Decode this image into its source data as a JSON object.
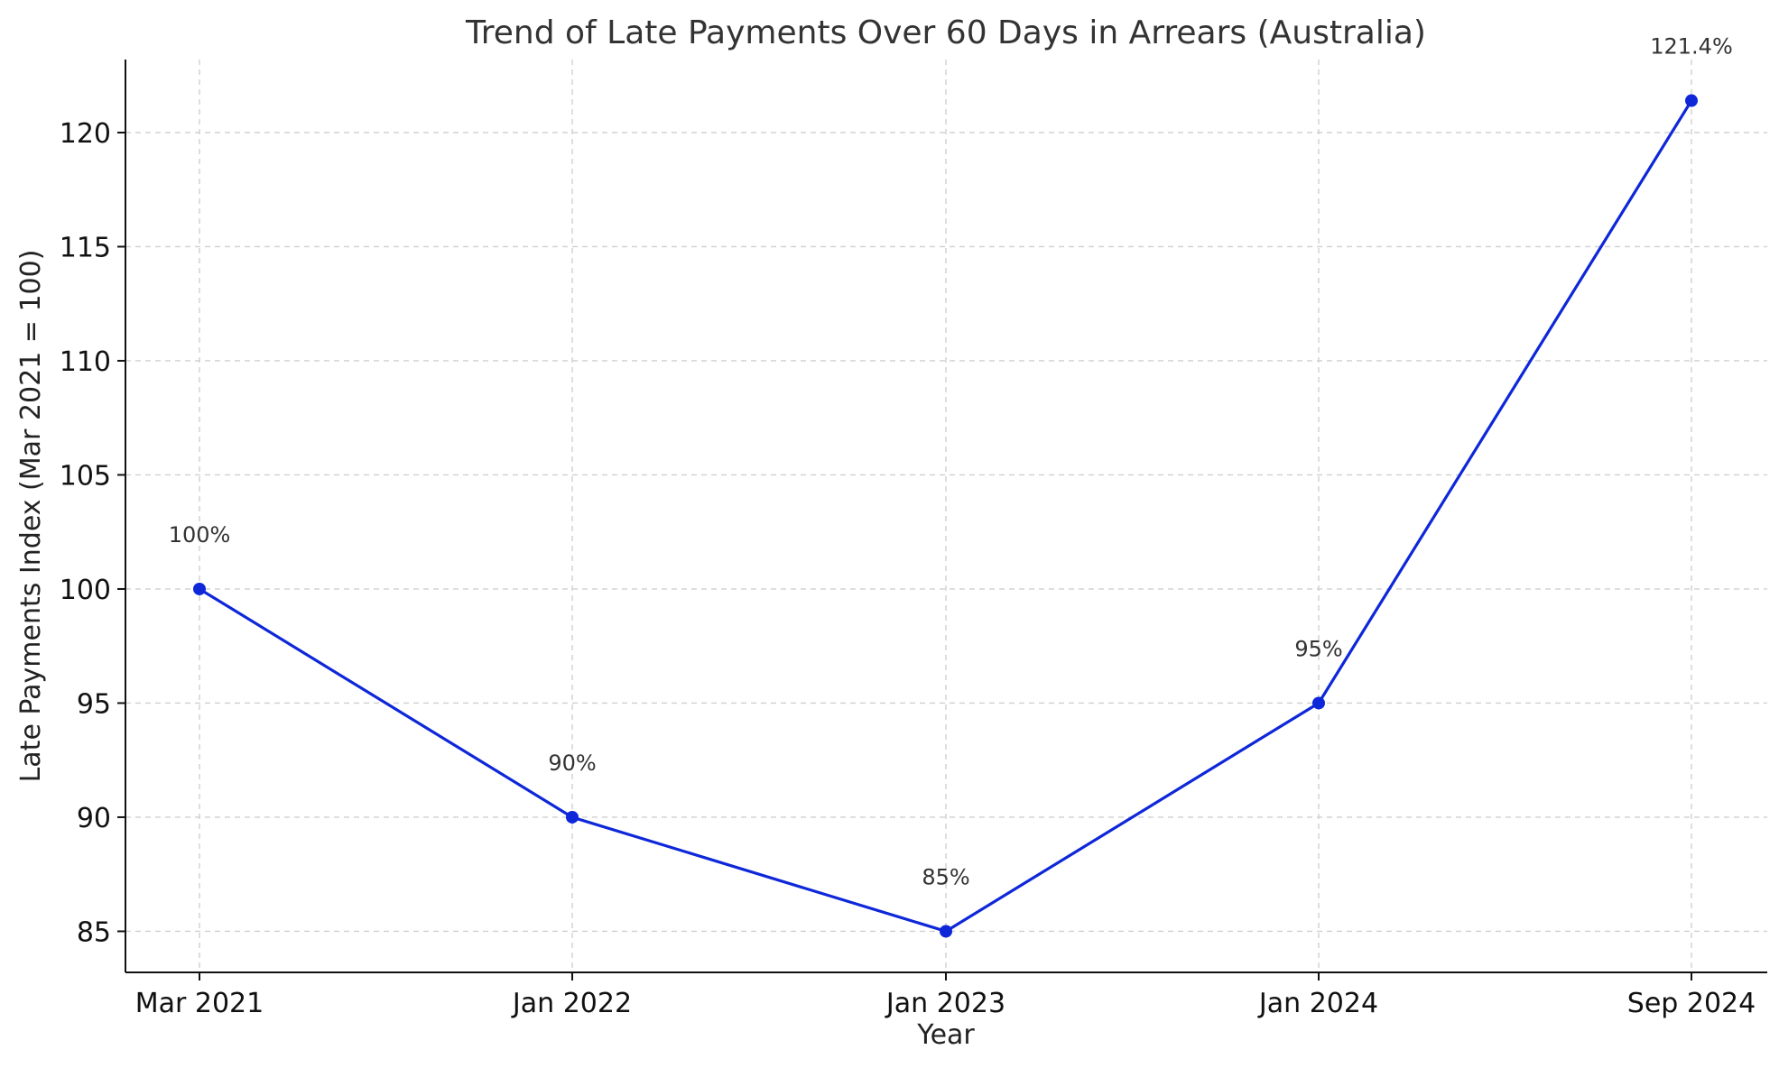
{
  "chart_data": {
    "type": "line",
    "title": "Trend of Late Payments Over 60 Days in Arrears (Australia)",
    "xlabel": "Year",
    "ylabel": "Late Payments Index (Mar 2021 = 100)",
    "categories": [
      "Mar 2021",
      "Jan 2022",
      "Jan 2023",
      "Jan 2024",
      "Sep 2024"
    ],
    "series": [
      {
        "values": [
          100,
          90,
          85,
          95,
          121.4
        ],
        "color": "#0d27d9",
        "marker": "circle"
      }
    ],
    "data_labels": [
      "100%",
      "90%",
      "85%",
      "95%",
      "121.4%"
    ],
    "yticks": [
      85,
      90,
      95,
      100,
      105,
      110,
      115,
      120
    ],
    "ylim": [
      83.2,
      123.2
    ],
    "grid": true,
    "legend": "none"
  }
}
